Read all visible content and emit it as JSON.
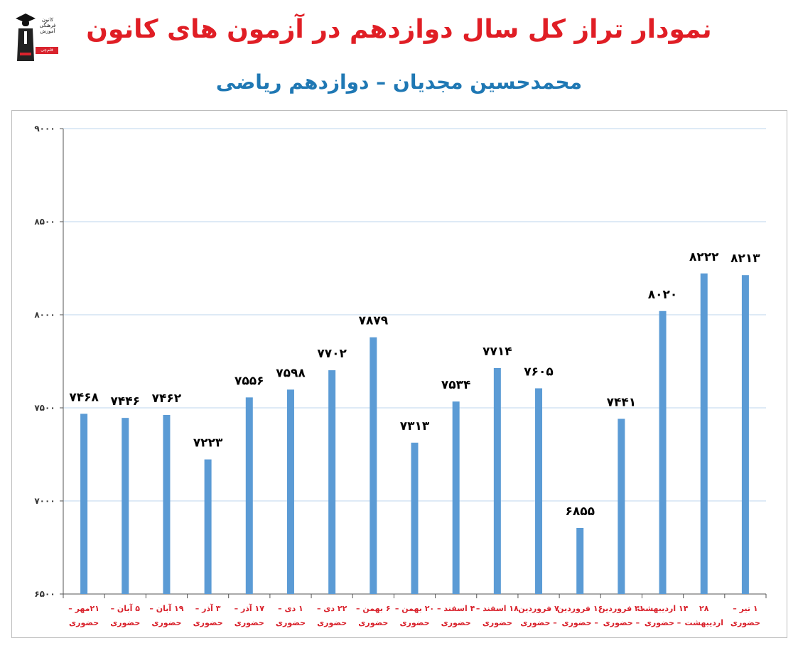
{
  "header": {
    "title": "نمودار تراز کل سال دوازدهم در آزمون های کانون",
    "title_color": "#e01e25",
    "subtitle": "محمدحسین مجدیان – دوازدهم ریاضی",
    "subtitle_color": "#1f78b4"
  },
  "logo": {
    "icon": "graduate-figure-icon",
    "text_lines": [
      "کانون",
      "فرهنگی",
      "آموزش"
    ],
    "tag": "قلم‌چی"
  },
  "colors": {
    "bar": "#5b9bd5",
    "grid": "#bcd6ec",
    "axis": "#555555",
    "x_label": "#d9232d"
  },
  "chart_data": {
    "type": "bar",
    "title": "نمودار تراز کل سال دوازدهم در آزمون های کانون",
    "subtitle": "محمدحسین مجدیان – دوازدهم ریاضی",
    "xlabel": "",
    "ylabel": "",
    "ylim": [
      6500,
      9000
    ],
    "yticks": [
      6500,
      7000,
      7500,
      8000,
      8500,
      9000
    ],
    "ytick_labels": [
      "۶۵۰۰",
      "۷۰۰۰",
      "۷۵۰۰",
      "۸۰۰۰",
      "۸۵۰۰",
      "۹۰۰۰"
    ],
    "grid": true,
    "legend": "none",
    "categories": [
      [
        "۲۱مهر –",
        "حضوری"
      ],
      [
        "۵ آبان –",
        "حضوری"
      ],
      [
        "۱۹ آبان –",
        "حضوری"
      ],
      [
        "۳ آذر –",
        "حضوری"
      ],
      [
        "۱۷ آذر –",
        "حضوری"
      ],
      [
        "۱ دی –",
        "حضوری"
      ],
      [
        "۲۲ دی –",
        "حضوری"
      ],
      [
        "۶ بهمن –",
        "حضوری"
      ],
      [
        "۲۰ بهمن –",
        "حضوری"
      ],
      [
        "۴ اسفند –",
        "حضوری"
      ],
      [
        "۱۸ اسفند –",
        "حضوری"
      ],
      [
        "۷ فروردین",
        "– حضوری"
      ],
      [
        "۱۶ فروردین",
        "– حضوری"
      ],
      [
        "۳۱ فروردین",
        "– حضوری"
      ],
      [
        "۱۴ اردیبهشت",
        "– حضوری"
      ],
      [
        "۲۸",
        "اردیبهشت"
      ],
      [
        "۱ تیر –",
        "حضوری"
      ]
    ],
    "values": [
      7468,
      7446,
      7462,
      7223,
      7556,
      7598,
      7702,
      7879,
      7313,
      7534,
      7714,
      7605,
      6855,
      7441,
      8020,
      8222,
      8213
    ],
    "value_labels": [
      "۷۴۶۸",
      "۷۴۴۶",
      "۷۴۶۲",
      "۷۲۲۳",
      "۷۵۵۶",
      "۷۵۹۸",
      "۷۷۰۲",
      "۷۸۷۹",
      "۷۳۱۳",
      "۷۵۳۴",
      "۷۷۱۴",
      "۷۶۰۵",
      "۶۸۵۵",
      "۷۴۴۱",
      "۸۰۲۰",
      "۸۲۲۲",
      "۸۲۱۳"
    ]
  }
}
